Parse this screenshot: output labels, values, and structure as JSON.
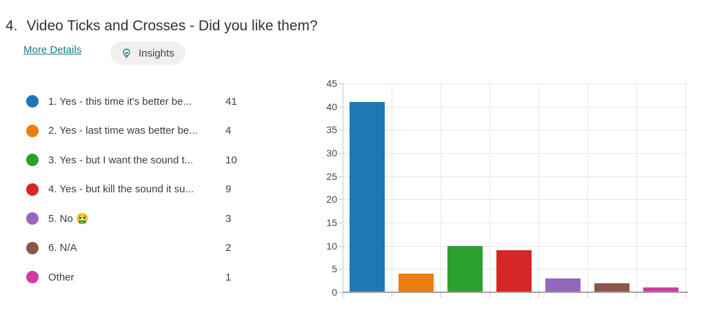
{
  "question": {
    "number": "4.",
    "title": "Video Ticks and Crosses - Did you like them?"
  },
  "actions": {
    "more_details_label": "More Details",
    "insights_label": "Insights"
  },
  "legend": {
    "items": [
      {
        "label": "1. Yes - this time it's better be...",
        "count": "41",
        "color": "#1f77b4"
      },
      {
        "label": "2. Yes - last time was better be...",
        "count": "4",
        "color": "#ed7d0e"
      },
      {
        "label": "3. Yes - but I want the sound t...",
        "count": "10",
        "color": "#2ca02c"
      },
      {
        "label": "4. Yes - but kill the sound it su...",
        "count": "9",
        "color": "#d62728"
      },
      {
        "label": "5. No 🤮",
        "count": "3",
        "color": "#9467bd"
      },
      {
        "label": "6. N/A",
        "count": "2",
        "color": "#8c564b"
      },
      {
        "label": "Other",
        "count": "1",
        "color": "#cf3e9e"
      }
    ]
  },
  "chart_data": {
    "type": "bar",
    "categories": [
      "1. Yes - this time it's better be...",
      "2. Yes - last time was better be...",
      "3. Yes - but I want the sound t...",
      "4. Yes - but kill the sound it su...",
      "5. No 🤮",
      "6. N/A",
      "Other"
    ],
    "values": [
      41,
      4,
      10,
      9,
      3,
      2,
      1
    ],
    "colors": [
      "#1f77b4",
      "#ed7d0e",
      "#2ca02c",
      "#d62728",
      "#9467bd",
      "#8c564b",
      "#cf3e9e"
    ],
    "title": "",
    "xlabel": "",
    "ylabel": "",
    "ylim": [
      0,
      45
    ],
    "ytick_step": 5,
    "ytick_labels": [
      "0",
      "5",
      "10",
      "15",
      "20",
      "25",
      "30",
      "35",
      "40",
      "45"
    ],
    "grid": true,
    "legend_position": "left"
  },
  "colors": {
    "accent_teal": "#147c87",
    "pill_background": "#f1f0ee",
    "gridline": "#e6e6e6",
    "axis": "#a2a2a2",
    "text_dark": "#323130"
  }
}
